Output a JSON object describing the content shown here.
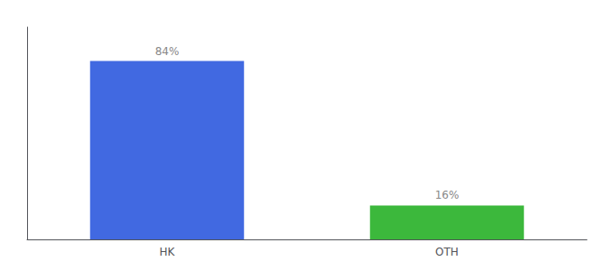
{
  "chart_data": {
    "type": "bar",
    "categories": [
      "HK",
      "OTH"
    ],
    "values": [
      84,
      16
    ],
    "value_labels": [
      "84%",
      "16%"
    ],
    "colors": [
      "#4169e1",
      "#3cb83c"
    ],
    "ylim": [
      0,
      100
    ],
    "yticks": [],
    "grid": false,
    "data_labels": true,
    "tick_labels": "x"
  }
}
